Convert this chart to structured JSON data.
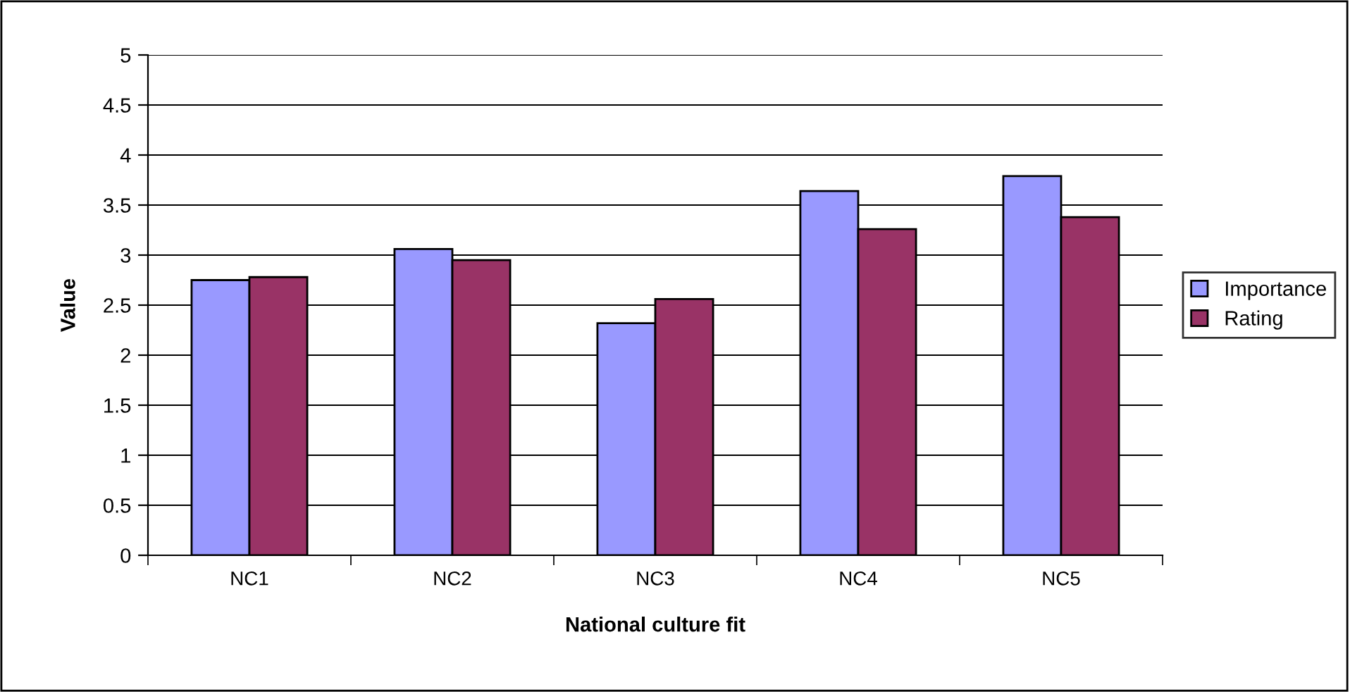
{
  "chart_data": {
    "type": "bar",
    "xlabel": "National culture fit",
    "ylabel": "Value",
    "categories": [
      "NC1",
      "NC2",
      "NC3",
      "NC4",
      "NC5"
    ],
    "series": [
      {
        "name": "Importance",
        "color": "#9999ff",
        "values": [
          2.75,
          3.06,
          2.32,
          3.64,
          3.79
        ]
      },
      {
        "name": "Rating",
        "color": "#993366",
        "values": [
          2.78,
          2.95,
          2.56,
          3.26,
          3.38
        ]
      }
    ],
    "ylim": [
      0,
      5
    ],
    "yticks": [
      0,
      0.5,
      1,
      1.5,
      2,
      2.5,
      3,
      3.5,
      4,
      4.5,
      5
    ],
    "grid": "y",
    "legend": "right"
  }
}
